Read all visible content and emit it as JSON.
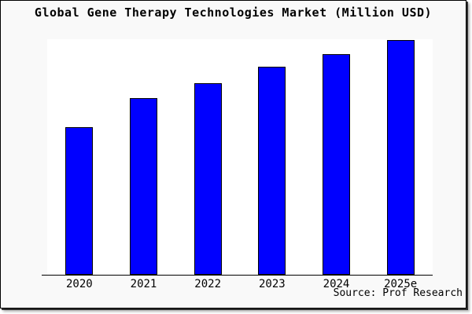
{
  "title": "Global Gene Therapy Technologies Market (Million USD)",
  "source_note": "Source: Prof Research",
  "colors": {
    "bar_fill": "#0000ff",
    "bar_border": "#000000",
    "frame_background": "#f9f9f9",
    "plot_background": "#ffffff",
    "axis": "#000000",
    "text": "#000000"
  },
  "chart_data": {
    "type": "bar",
    "title": "Global Gene Therapy Technologies Market (Million USD)",
    "categories": [
      "2020",
      "2021",
      "2022",
      "2023",
      "2024",
      "2025e"
    ],
    "values": [
      188,
      225,
      244,
      265,
      281,
      299
    ],
    "value_note": "no y-axis or data labels shown; values are relative bar heights read from the plot (plot height 300)",
    "xlabel": "",
    "ylabel": "",
    "ylim": [
      0,
      300
    ],
    "grid": false,
    "legend": false,
    "bar_color": "#0000ff",
    "axis_shown": [
      "bottom"
    ]
  }
}
